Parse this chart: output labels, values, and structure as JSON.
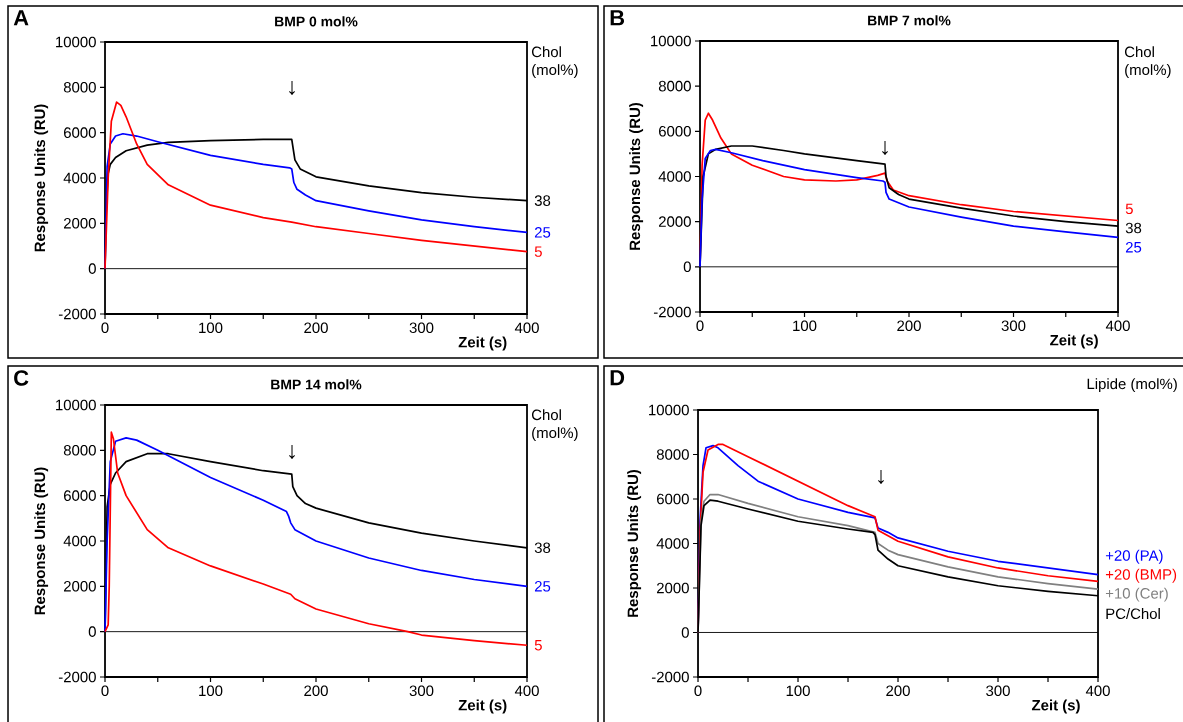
{
  "chart_data": [
    {
      "type": "line",
      "title": "BMP 0 mol%",
      "xlabel": "Zeit (s)",
      "ylabel": "Response Units (RU)",
      "legend_title": "Chol (mol%)",
      "annotations": [
        "A",
        "↓"
      ],
      "xlim": [
        0,
        400
      ],
      "ylim": [
        -2000,
        10000
      ],
      "xticks": [
        0,
        {
          "value": 50,
          "label": null
        },
        100,
        {
          "value": 150,
          "label": null
        },
        200,
        {
          "value": 250,
          "label": null
        },
        300,
        {
          "value": 350,
          "label": null
        },
        400
      ],
      "yticks": [
        -2000,
        0,
        2000,
        4000,
        6000,
        8000,
        10000
      ],
      "ref_lines": [
        {
          "axis": "y",
          "value": 0
        }
      ],
      "series": [
        {
          "name": "38",
          "color": "#000000",
          "x": [
            0,
            1,
            3,
            5,
            10,
            20,
            40,
            60,
            100,
            150,
            177,
            178,
            180,
            185,
            200,
            250,
            300,
            350,
            400
          ],
          "values": [
            0,
            2500,
            4200,
            4600,
            4900,
            5200,
            5450,
            5570,
            5650,
            5700,
            5700,
            5400,
            4800,
            4400,
            4050,
            3650,
            3350,
            3150,
            3000
          ]
        },
        {
          "name": "25",
          "color": "#0000ff",
          "x": [
            0,
            2,
            5,
            10,
            17,
            30,
            50,
            100,
            150,
            175,
            177,
            179,
            182,
            190,
            200,
            250,
            300,
            350,
            400
          ],
          "values": [
            0,
            4500,
            5500,
            5850,
            5950,
            5850,
            5600,
            5000,
            4600,
            4450,
            4400,
            3800,
            3500,
            3250,
            3000,
            2550,
            2150,
            1850,
            1600
          ]
        },
        {
          "name": "5",
          "color": "#ff0000",
          "x": [
            0,
            3,
            6,
            11,
            15,
            20,
            30,
            40,
            60,
            100,
            150,
            177,
            200,
            250,
            300,
            350,
            400
          ],
          "values": [
            0,
            4000,
            6500,
            7350,
            7200,
            6700,
            5500,
            4600,
            3700,
            2800,
            2250,
            2050,
            1850,
            1550,
            1250,
            1000,
            750
          ]
        }
      ]
    },
    {
      "type": "line",
      "title": "BMP 7 mol%",
      "xlabel": "Zeit (s)",
      "ylabel": "Response Units (RU)",
      "legend_title": "Chol (mol%)",
      "annotations": [
        "B",
        "↓"
      ],
      "xlim": [
        0,
        400
      ],
      "ylim": [
        -2000,
        10000
      ],
      "xticks": [
        0,
        {
          "value": 50,
          "label": null
        },
        100,
        {
          "value": 150,
          "label": null
        },
        200,
        {
          "value": 250,
          "label": null
        },
        300,
        {
          "value": 350,
          "label": null
        },
        400
      ],
      "yticks": [
        -2000,
        0,
        2000,
        4000,
        6000,
        8000,
        10000
      ],
      "ref_lines": [
        {
          "axis": "y",
          "value": 0
        }
      ],
      "series": [
        {
          "name": "5",
          "color": "#ff0000",
          "x": [
            0,
            2,
            5,
            8,
            12,
            20,
            30,
            50,
            80,
            100,
            130,
            150,
            170,
            177,
            179,
            185,
            200,
            250,
            300,
            350,
            400
          ],
          "values": [
            0,
            4500,
            6500,
            6800,
            6500,
            5700,
            5000,
            4500,
            4000,
            3850,
            3800,
            3850,
            4050,
            4150,
            3800,
            3400,
            3150,
            2750,
            2450,
            2250,
            2050
          ]
        },
        {
          "name": "38",
          "color": "#000000",
          "x": [
            0,
            3,
            8,
            15,
            30,
            50,
            80,
            100,
            150,
            177,
            178,
            181,
            190,
            200,
            250,
            300,
            350,
            400
          ],
          "values": [
            0,
            4000,
            5000,
            5200,
            5350,
            5350,
            5150,
            5000,
            4700,
            4550,
            4000,
            3500,
            3200,
            3000,
            2600,
            2250,
            2000,
            1800
          ]
        },
        {
          "name": "25",
          "color": "#0000ff",
          "x": [
            0,
            2,
            5,
            10,
            15,
            30,
            60,
            100,
            150,
            175,
            177,
            178,
            181,
            200,
            250,
            300,
            350,
            400
          ],
          "values": [
            0,
            3000,
            4800,
            5150,
            5200,
            5050,
            4700,
            4300,
            3950,
            3800,
            3750,
            3300,
            3000,
            2650,
            2200,
            1800,
            1550,
            1300
          ]
        }
      ]
    },
    {
      "type": "line",
      "title": "BMP 14 mol%",
      "xlabel": "Zeit (s)",
      "ylabel": "Response Units (RU)",
      "legend_title": "Chol (mol%)",
      "annotations": [
        "C",
        "↓"
      ],
      "xlim": [
        0,
        400
      ],
      "ylim": [
        -2000,
        10000
      ],
      "xticks": [
        0,
        {
          "value": 50,
          "label": null
        },
        100,
        {
          "value": 150,
          "label": null
        },
        200,
        {
          "value": 250,
          "label": null
        },
        300,
        {
          "value": 350,
          "label": null
        },
        400
      ],
      "yticks": [
        -2000,
        0,
        2000,
        4000,
        6000,
        8000,
        10000
      ],
      "ref_lines": [
        {
          "axis": "y",
          "value": 0
        }
      ],
      "series": [
        {
          "name": "38",
          "color": "#000000",
          "x": [
            0,
            2,
            5,
            10,
            20,
            40,
            60,
            100,
            150,
            177,
            178,
            182,
            190,
            200,
            250,
            300,
            350,
            400
          ],
          "values": [
            0,
            5500,
            6500,
            7000,
            7500,
            7850,
            7850,
            7500,
            7100,
            6950,
            6400,
            6000,
            5650,
            5450,
            4800,
            4350,
            4000,
            3700
          ]
        },
        {
          "name": "25",
          "color": "#0000ff",
          "x": [
            0,
            2,
            5,
            10,
            20,
            30,
            50,
            100,
            150,
            172,
            174,
            176,
            180,
            200,
            250,
            300,
            350,
            400
          ],
          "values": [
            0,
            4000,
            7500,
            8400,
            8550,
            8450,
            8000,
            6800,
            5800,
            5300,
            5100,
            4800,
            4500,
            4000,
            3250,
            2700,
            2300,
            2000
          ]
        },
        {
          "name": "5",
          "color": "#ff0000",
          "x": [
            0,
            3,
            4,
            6,
            8,
            12,
            20,
            40,
            60,
            100,
            150,
            176,
            180,
            200,
            250,
            287,
            300,
            350,
            400
          ],
          "values": [
            0,
            300,
            2000,
            8800,
            8500,
            7000,
            6000,
            4500,
            3700,
            2900,
            2100,
            1650,
            1450,
            1000,
            350,
            0,
            -150,
            -400,
            -600
          ]
        }
      ]
    },
    {
      "type": "line",
      "xlabel": "Zeit (s)",
      "ylabel": "Response Units (RU)",
      "legend_title": "Lipide (mol%)",
      "annotations": [
        "D",
        "↓"
      ],
      "xlim": [
        0,
        400
      ],
      "ylim": [
        -2000,
        10000
      ],
      "xticks": [
        0,
        {
          "value": 50,
          "label": null
        },
        100,
        {
          "value": 150,
          "label": null
        },
        200,
        {
          "value": 250,
          "label": null
        },
        300,
        {
          "value": 350,
          "label": null
        },
        400
      ],
      "yticks": [
        -2000,
        0,
        2000,
        4000,
        6000,
        8000,
        10000
      ],
      "ref_lines": [
        {
          "axis": "y",
          "value": 0
        }
      ],
      "series": [
        {
          "name": "+20 (PA)",
          "color": "#0000ff",
          "x": [
            0,
            2,
            5,
            8,
            15,
            20,
            40,
            60,
            100,
            150,
            177,
            180,
            190,
            200,
            250,
            300,
            350,
            400
          ],
          "values": [
            0,
            5000,
            7500,
            8300,
            8400,
            8300,
            7500,
            6800,
            6000,
            5400,
            5150,
            4700,
            4500,
            4250,
            3650,
            3200,
            2900,
            2600
          ]
        },
        {
          "name": "+20 (BMP)",
          "color": "#ff0000",
          "x": [
            0,
            2,
            5,
            10,
            20,
            25,
            50,
            100,
            150,
            177,
            180,
            200,
            250,
            300,
            350,
            400
          ],
          "values": [
            0,
            4500,
            7200,
            8200,
            8450,
            8450,
            7900,
            6800,
            5700,
            5200,
            4600,
            4100,
            3400,
            2900,
            2550,
            2300
          ]
        },
        {
          "name": "+10 (Cer)",
          "color": "#808080",
          "x": [
            0,
            3,
            6,
            12,
            20,
            50,
            100,
            150,
            177,
            180,
            190,
            200,
            250,
            300,
            350,
            400
          ],
          "values": [
            0,
            5000,
            5900,
            6200,
            6200,
            5800,
            5200,
            4800,
            4500,
            4000,
            3700,
            3500,
            2950,
            2500,
            2200,
            1950
          ]
        },
        {
          "name": "PC/Chol",
          "color": "#000000",
          "x": [
            0,
            3,
            6,
            12,
            20,
            50,
            100,
            150,
            175,
            177,
            180,
            190,
            200,
            250,
            300,
            350,
            400
          ],
          "values": [
            0,
            4800,
            5700,
            5950,
            5900,
            5550,
            5000,
            4650,
            4500,
            4400,
            3700,
            3300,
            3000,
            2500,
            2100,
            1850,
            1650
          ]
        }
      ]
    }
  ]
}
